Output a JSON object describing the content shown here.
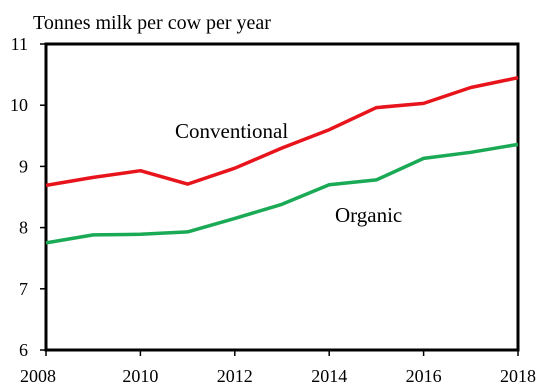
{
  "chart_data": {
    "type": "line",
    "title": "Tonnes milk per cow per year",
    "xlabel": "",
    "ylabel": "",
    "x": [
      2008,
      2009,
      2010,
      2011,
      2012,
      2013,
      2014,
      2015,
      2016,
      2017,
      2018
    ],
    "xticks": [
      "2008",
      "2010",
      "2012",
      "2014",
      "2016",
      "2018"
    ],
    "yticks": [
      "6",
      "7",
      "8",
      "9",
      "10",
      "11"
    ],
    "xlim": [
      2008,
      2018
    ],
    "ylim": [
      6,
      11
    ],
    "grid": false,
    "legend": "none",
    "series": [
      {
        "name": "Conventional",
        "color": "#e8141c",
        "values": [
          8.69,
          8.82,
          8.93,
          8.71,
          8.97,
          9.3,
          9.6,
          9.96,
          10.03,
          10.29,
          10.45
        ]
      },
      {
        "name": "Organic",
        "color": "#1aaa55",
        "values": [
          7.75,
          7.88,
          7.89,
          7.93,
          8.15,
          8.38,
          8.7,
          8.78,
          9.13,
          9.23,
          9.36
        ]
      }
    ]
  }
}
